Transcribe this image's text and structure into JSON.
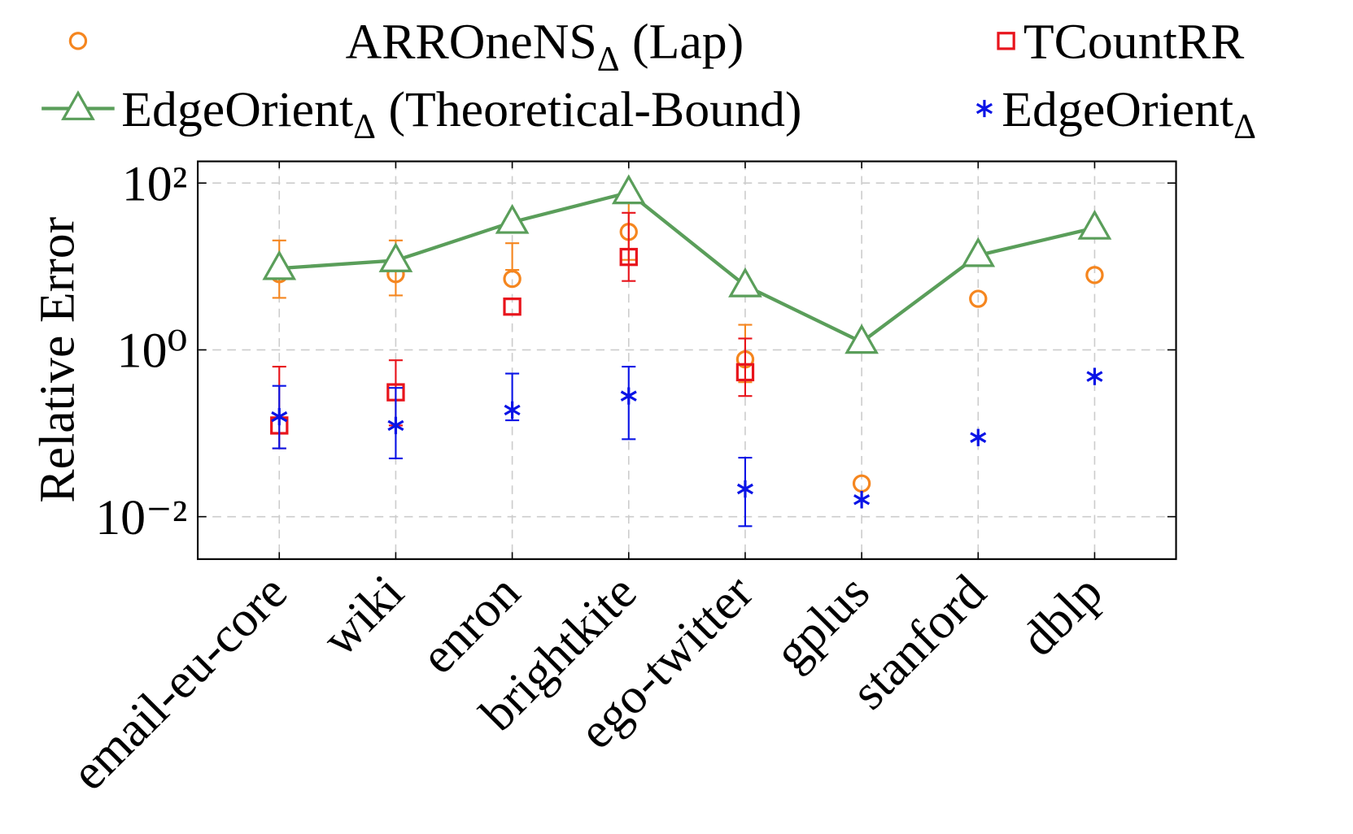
{
  "chart_data": {
    "type": "scatter",
    "y_label": "Relative Error",
    "categories": [
      "email-eu-core",
      "wiki",
      "enron",
      "brightkite",
      "ego-twitter",
      "gplus",
      "stanford",
      "dblp"
    ],
    "log_y": true,
    "ylim": [
      0.0031,
      182
    ],
    "yticks": [
      {
        "value": 0.01,
        "label": "10⁻²"
      },
      {
        "value": 1,
        "label": "10⁰"
      },
      {
        "value": 100,
        "label": "10²"
      }
    ],
    "grid": true,
    "legend_position": "top",
    "series": [
      {
        "name": "ARROneNSΔ (Lap)",
        "color": "#f5861f",
        "marker": "circle",
        "line": false,
        "values": [
          8.1,
          8.1,
          7.1,
          26,
          0.77,
          0.025,
          4.1,
          7.9
        ],
        "err_low": [
          4.2,
          4.5,
          9.1,
          12,
          0.41,
          null,
          null,
          null
        ],
        "err_high": [
          20.5,
          20.5,
          19,
          63,
          2.0,
          null,
          null,
          null
        ]
      },
      {
        "name": "TCountRR",
        "color": "#e8141c",
        "marker": "square",
        "line": false,
        "values": [
          0.124,
          0.31,
          3.3,
          13,
          0.54,
          null,
          null,
          null
        ],
        "err_low": [
          0.066,
          0.124,
          null,
          6.7,
          0.28,
          null,
          null,
          null
        ],
        "err_high": [
          0.63,
          0.75,
          null,
          44,
          1.37,
          null,
          null,
          null
        ]
      },
      {
        "name": "EdgeOrientΔ (Theoretical-Bound)",
        "color": "#5a9e5a",
        "marker": "triangle",
        "line": true,
        "values": [
          9.5,
          11.8,
          34,
          77,
          5.9,
          1.24,
          13.6,
          29
        ]
      },
      {
        "name": "EdgeOrientΔ",
        "color": "#0a14e6",
        "marker": "star",
        "line": false,
        "values": [
          0.158,
          0.124,
          0.19,
          0.28,
          0.0215,
          0.016,
          0.089,
          0.48
        ],
        "err_low": [
          0.066,
          0.05,
          0.143,
          0.085,
          0.0077,
          null,
          null,
          null
        ],
        "err_high": [
          0.37,
          0.35,
          0.52,
          0.63,
          0.051,
          null,
          null,
          null
        ]
      }
    ]
  }
}
